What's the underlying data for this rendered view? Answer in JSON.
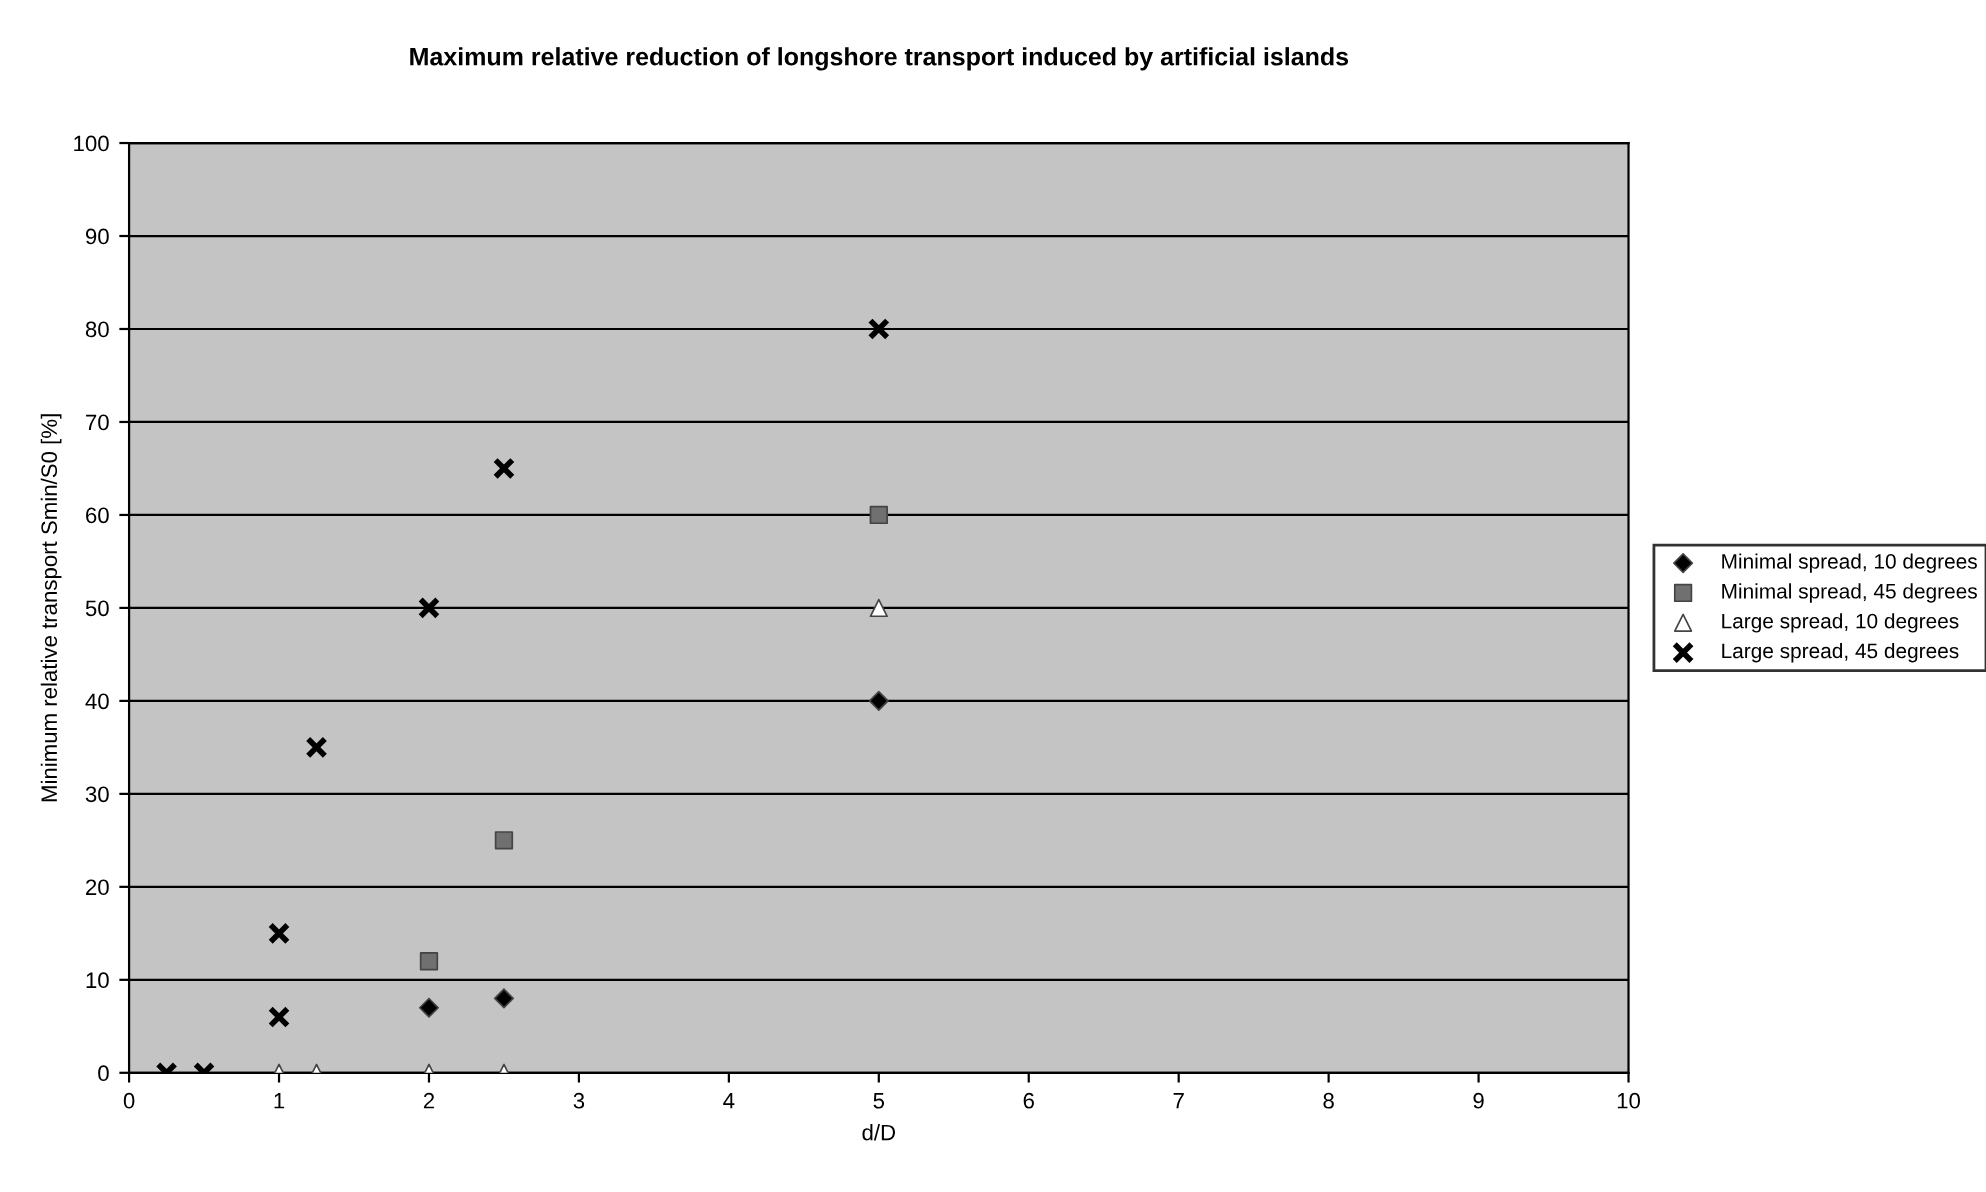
{
  "chart_data": {
    "type": "scatter",
    "title": "Maximum relative reduction of longshore transport induced by artificial islands",
    "xlabel": "d/D",
    "ylabel": "Minimum relative transport Smin/S0 [%]",
    "xlim": [
      0,
      10
    ],
    "xticks": [
      0,
      1,
      2,
      3,
      4,
      5,
      6,
      7,
      8,
      9,
      10
    ],
    "ylim": [
      0,
      100
    ],
    "yticks": [
      0,
      10,
      20,
      30,
      40,
      50,
      60,
      70,
      80,
      90,
      100
    ],
    "grid": "y",
    "legend": "right",
    "series": [
      {
        "name": "Minimal spread, 10 degrees",
        "color": "#000000",
        "marker": "diamond",
        "x": [
          2,
          2.5,
          5
        ],
        "values": [
          7,
          8,
          40
        ]
      },
      {
        "name": "Minimal spread, 45 degrees",
        "color": "#707070",
        "marker": "square",
        "x": [
          2,
          2.5,
          5
        ],
        "values": [
          12,
          25,
          60
        ]
      },
      {
        "name": "Large spread, 10 degrees",
        "color": "#ffffff",
        "marker": "triangle",
        "x": [
          1,
          1.25,
          2,
          2.5,
          5
        ],
        "values": [
          0,
          0,
          0,
          0,
          50
        ]
      },
      {
        "name": "Large spread, 45 degrees",
        "color": "#000000",
        "marker": "cross",
        "x": [
          0.25,
          0.5,
          1,
          1,
          1.25,
          2,
          2.5,
          5
        ],
        "values": [
          0,
          0,
          6,
          15,
          35,
          50,
          65,
          80
        ]
      }
    ]
  }
}
